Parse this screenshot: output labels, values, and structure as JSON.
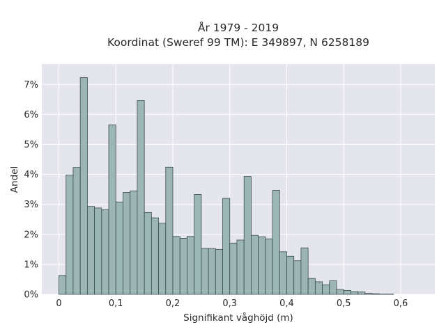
{
  "chart_data": {
    "type": "bar",
    "title": "År 1979 - 2019",
    "subtitle": "Koordinat (Sweref 99 TM): E 349897, N 6258189",
    "xlabel": "Signifikant våghöjd (m)",
    "ylabel": "Andel",
    "xlim": [
      -0.03,
      0.66
    ],
    "ylim": [
      0,
      0.0768
    ],
    "x_ticks": [
      0,
      0.1,
      0.2,
      0.3,
      0.4,
      0.5,
      0.6
    ],
    "x_tick_labels": [
      "0",
      "0,1",
      "0,2",
      "0,3",
      "0,4",
      "0,5",
      "0,6"
    ],
    "y_ticks": [
      0,
      0.01,
      0.02,
      0.03,
      0.04,
      0.05,
      0.06,
      0.07
    ],
    "y_tick_labels": [
      "0%",
      "1%",
      "2%",
      "3%",
      "4%",
      "5%",
      "6%",
      "7%"
    ],
    "grid": true,
    "bin_width": 0.0125,
    "bin_start": 0,
    "values": [
      0.0063,
      0.0398,
      0.0423,
      0.0723,
      0.0293,
      0.0288,
      0.0282,
      0.0565,
      0.0308,
      0.034,
      0.0345,
      0.0646,
      0.0273,
      0.0255,
      0.0237,
      0.0424,
      0.0193,
      0.0187,
      0.0193,
      0.0333,
      0.0153,
      0.0153,
      0.015,
      0.032,
      0.0171,
      0.0181,
      0.0393,
      0.0197,
      0.0192,
      0.0185,
      0.0347,
      0.0142,
      0.0127,
      0.0112,
      0.0155,
      0.0053,
      0.0042,
      0.0032,
      0.0045,
      0.0016,
      0.0013,
      0.0009,
      0.0008,
      0.0003,
      0.0002,
      0.0001,
      0.0001,
      0.0,
      0.0
    ],
    "colors": {
      "plot_bg": "#e5e5ee",
      "bar_fill": "#9cb5b5",
      "bar_stroke": "#3a4a4a",
      "grid": "#ffffff"
    }
  }
}
